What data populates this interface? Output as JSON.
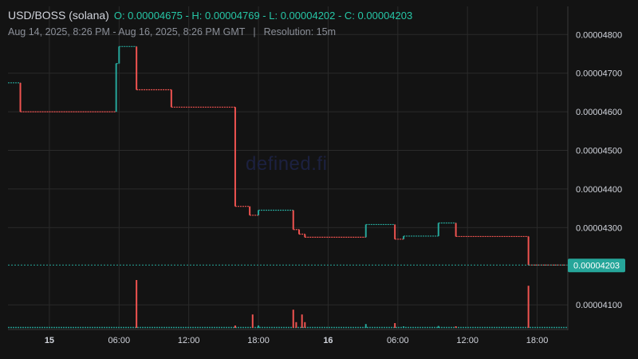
{
  "header": {
    "symbol": "USD/BOSS (solana)",
    "ohlc": "O: 0.00004675 - H: 0.00004769 - L: 0.00004202 - C: 0.00004203",
    "range": "Aug 14, 2025, 8:26 PM - Aug 16, 2025, 8:26 PM GMT",
    "separator": "|",
    "resolution": "Resolution: 15m"
  },
  "watermark": "defined.fi",
  "colors": {
    "background": "#131313",
    "grid": "#2a2a2a",
    "up": "#26a69a",
    "down": "#ef5350",
    "last_price_bg": "#26a69a",
    "axis_text": "#d1d4dc",
    "ohlc_text": "#26c6a6"
  },
  "chart_data": {
    "type": "candlestick",
    "resolution": "15m",
    "y_axis": {
      "position": "right",
      "ticks": [
        "0.00004800",
        "0.00004700",
        "0.00004600",
        "0.00004500",
        "0.00004400",
        "0.00004300",
        "0.00004100"
      ],
      "tick_values": [
        4.8e-05,
        4.7e-05,
        4.6e-05,
        4.5e-05,
        4.4e-05,
        4.3e-05,
        4.1e-05
      ],
      "range": [
        4.035e-05,
        4.845e-05
      ]
    },
    "x_axis": {
      "range": [
        "2025-08-14 20:26",
        "2025-08-16 20:26"
      ],
      "ticks": [
        {
          "label": "15",
          "time": "2025-08-15 00:00",
          "bold": true
        },
        {
          "label": "06:00",
          "time": "2025-08-15 06:00"
        },
        {
          "label": "12:00",
          "time": "2025-08-15 12:00"
        },
        {
          "label": "18:00",
          "time": "2025-08-15 18:00"
        },
        {
          "label": "16",
          "time": "2025-08-16 00:00",
          "bold": true
        },
        {
          "label": "06:00",
          "time": "2025-08-16 06:00"
        },
        {
          "label": "12:00",
          "time": "2025-08-16 12:00"
        },
        {
          "label": "18:00",
          "time": "2025-08-16 18:00"
        }
      ]
    },
    "last_price": "0.00004203",
    "last_price_value": 4.203e-05,
    "price_steps": [
      {
        "start": "2025-08-14 20:26",
        "end": "2025-08-14 21:30",
        "price": 4.675e-05
      },
      {
        "start": "2025-08-14 21:30",
        "end": "2025-08-15 05:45",
        "price": 4.6e-05
      },
      {
        "start": "2025-08-15 05:45",
        "end": "2025-08-15 06:00",
        "price": 4.725e-05
      },
      {
        "start": "2025-08-15 06:00",
        "end": "2025-08-15 07:30",
        "price": 4.769e-05
      },
      {
        "start": "2025-08-15 07:30",
        "end": "2025-08-15 10:30",
        "price": 4.657e-05
      },
      {
        "start": "2025-08-15 10:30",
        "end": "2025-08-15 16:00",
        "price": 4.612e-05
      },
      {
        "start": "2025-08-15 16:00",
        "end": "2025-08-15 17:15",
        "price": 4.355e-05
      },
      {
        "start": "2025-08-15 17:15",
        "end": "2025-08-15 18:00",
        "price": 4.332e-05
      },
      {
        "start": "2025-08-15 18:00",
        "end": "2025-08-15 21:00",
        "price": 4.345e-05
      },
      {
        "start": "2025-08-15 21:00",
        "end": "2025-08-15 21:30",
        "price": 4.295e-05
      },
      {
        "start": "2025-08-15 21:30",
        "end": "2025-08-15 22:00",
        "price": 4.283e-05
      },
      {
        "start": "2025-08-15 22:00",
        "end": "2025-08-16 03:15",
        "price": 4.275e-05
      },
      {
        "start": "2025-08-16 03:15",
        "end": "2025-08-16 05:45",
        "price": 4.308e-05
      },
      {
        "start": "2025-08-16 05:45",
        "end": "2025-08-16 06:30",
        "price": 4.27e-05
      },
      {
        "start": "2025-08-16 06:30",
        "end": "2025-08-16 09:30",
        "price": 4.278e-05
      },
      {
        "start": "2025-08-16 09:30",
        "end": "2025-08-16 11:00",
        "price": 4.312e-05
      },
      {
        "start": "2025-08-16 11:00",
        "end": "2025-08-16 17:15",
        "price": 4.277e-05
      },
      {
        "start": "2025-08-16 17:15",
        "end": "2025-08-16 20:26",
        "price": 4.203e-05
      }
    ],
    "volume_spikes": [
      {
        "time": "2025-08-15 07:30",
        "rel": 1.0,
        "dir": "down"
      },
      {
        "time": "2025-08-15 17:30",
        "rel": 0.28,
        "dir": "down"
      },
      {
        "time": "2025-08-15 16:00",
        "rel": 0.05,
        "dir": "down"
      },
      {
        "time": "2025-08-15 18:00",
        "rel": 0.05,
        "dir": "up"
      },
      {
        "time": "2025-08-15 21:00",
        "rel": 0.38,
        "dir": "down"
      },
      {
        "time": "2025-08-15 21:15",
        "rel": 0.12,
        "dir": "down"
      },
      {
        "time": "2025-08-15 21:45",
        "rel": 0.28,
        "dir": "down"
      },
      {
        "time": "2025-08-15 22:00",
        "rel": 0.12,
        "dir": "down"
      },
      {
        "time": "2025-08-16 03:15",
        "rel": 0.08,
        "dir": "up"
      },
      {
        "time": "2025-08-16 05:45",
        "rel": 0.1,
        "dir": "down"
      },
      {
        "time": "2025-08-16 06:30",
        "rel": 0.03,
        "dir": "up"
      },
      {
        "time": "2025-08-16 09:30",
        "rel": 0.04,
        "dir": "up"
      },
      {
        "time": "2025-08-16 11:00",
        "rel": 0.03,
        "dir": "down"
      },
      {
        "time": "2025-08-16 17:15",
        "rel": 0.88,
        "dir": "down"
      }
    ]
  }
}
